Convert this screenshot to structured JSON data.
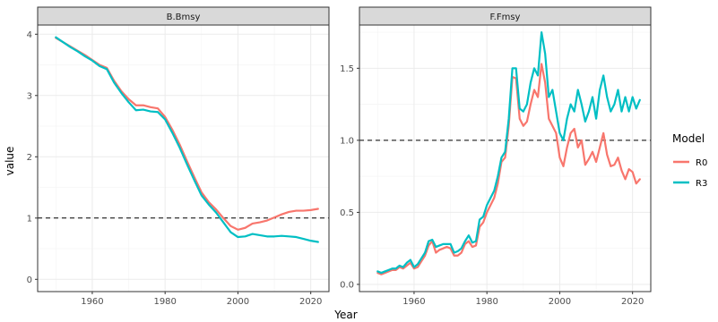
{
  "chart_data": {
    "type": "line",
    "xlabel": "Year",
    "ylabel": "value",
    "legend": {
      "title": "Model",
      "position": "right",
      "entries": [
        {
          "name": "R0",
          "color": "#F8766D"
        },
        {
          "name": "R3",
          "color": "#00BFC4"
        }
      ]
    },
    "grid": true,
    "facets": [
      {
        "title": "B.Bmsy",
        "xlim": [
          1945,
          2025
        ],
        "ylim": [
          -0.2,
          4.15
        ],
        "xticks": [
          1960,
          1980,
          2000,
          2020
        ],
        "yticks": [
          0,
          1,
          2,
          3,
          4
        ],
        "reference_line": 1.0,
        "series": [
          {
            "name": "R0",
            "x": [
              1950,
              1952,
              1954,
              1956,
              1958,
              1960,
              1962,
              1964,
              1966,
              1968,
              1970,
              1972,
              1974,
              1976,
              1978,
              1980,
              1982,
              1984,
              1986,
              1988,
              1990,
              1992,
              1994,
              1996,
              1998,
              2000,
              2002,
              2004,
              2006,
              2008,
              2010,
              2012,
              2014,
              2016,
              2018,
              2020,
              2022
            ],
            "y": [
              3.94,
              3.87,
              3.8,
              3.73,
              3.66,
              3.58,
              3.5,
              3.45,
              3.24,
              3.07,
              2.94,
              2.84,
              2.84,
              2.81,
              2.79,
              2.65,
              2.44,
              2.2,
              1.93,
              1.67,
              1.42,
              1.26,
              1.14,
              1.0,
              0.87,
              0.81,
              0.84,
              0.91,
              0.93,
              0.96,
              1.01,
              1.06,
              1.1,
              1.12,
              1.12,
              1.13,
              1.15
            ]
          },
          {
            "name": "R3",
            "x": [
              1950,
              1952,
              1954,
              1956,
              1958,
              1960,
              1962,
              1964,
              1966,
              1968,
              1970,
              1972,
              1974,
              1976,
              1978,
              1980,
              1982,
              1984,
              1986,
              1988,
              1990,
              1992,
              1994,
              1996,
              1998,
              2000,
              2002,
              2004,
              2006,
              2008,
              2010,
              2012,
              2014,
              2016,
              2018,
              2020,
              2022
            ],
            "y": [
              3.95,
              3.87,
              3.79,
              3.72,
              3.64,
              3.57,
              3.48,
              3.43,
              3.21,
              3.04,
              2.89,
              2.76,
              2.77,
              2.74,
              2.73,
              2.61,
              2.39,
              2.15,
              1.88,
              1.62,
              1.37,
              1.22,
              1.09,
              0.93,
              0.77,
              0.69,
              0.7,
              0.74,
              0.72,
              0.7,
              0.7,
              0.71,
              0.7,
              0.69,
              0.66,
              0.63,
              0.61
            ]
          }
        ]
      },
      {
        "title": "F.Fmsy",
        "xlim": [
          1945,
          2025
        ],
        "ylim": [
          -0.05,
          1.8
        ],
        "xticks": [
          1960,
          1980,
          2000,
          2020
        ],
        "yticks": [
          0.0,
          0.5,
          1.0,
          1.5
        ],
        "reference_line": 1.0,
        "series": [
          {
            "name": "R0",
            "x": [
              1950,
              1951,
              1952,
              1953,
              1954,
              1955,
              1956,
              1957,
              1958,
              1959,
              1960,
              1961,
              1962,
              1963,
              1964,
              1965,
              1966,
              1967,
              1968,
              1969,
              1970,
              1971,
              1972,
              1973,
              1974,
              1975,
              1976,
              1977,
              1978,
              1979,
              1980,
              1981,
              1982,
              1983,
              1984,
              1985,
              1986,
              1987,
              1988,
              1989,
              1990,
              1991,
              1992,
              1993,
              1994,
              1995,
              1996,
              1997,
              1998,
              1999,
              2000,
              2001,
              2002,
              2003,
              2004,
              2005,
              2006,
              2007,
              2008,
              2009,
              2010,
              2011,
              2012,
              2013,
              2014,
              2015,
              2016,
              2017,
              2018,
              2019,
              2020,
              2021,
              2022
            ],
            "y": [
              0.08,
              0.07,
              0.08,
              0.09,
              0.1,
              0.1,
              0.12,
              0.11,
              0.13,
              0.15,
              0.11,
              0.12,
              0.16,
              0.2,
              0.27,
              0.3,
              0.22,
              0.24,
              0.25,
              0.26,
              0.25,
              0.2,
              0.2,
              0.22,
              0.28,
              0.3,
              0.26,
              0.27,
              0.4,
              0.43,
              0.5,
              0.55,
              0.6,
              0.7,
              0.85,
              0.88,
              1.1,
              1.44,
              1.43,
              1.15,
              1.1,
              1.13,
              1.25,
              1.35,
              1.3,
              1.53,
              1.4,
              1.15,
              1.1,
              1.05,
              0.88,
              0.82,
              0.95,
              1.05,
              1.08,
              0.95,
              1.0,
              0.83,
              0.87,
              0.92,
              0.85,
              0.95,
              1.05,
              0.9,
              0.82,
              0.83,
              0.88,
              0.79,
              0.73,
              0.8,
              0.78,
              0.7,
              0.73
            ]
          },
          {
            "name": "R3",
            "x": [
              1950,
              1951,
              1952,
              1953,
              1954,
              1955,
              1956,
              1957,
              1958,
              1959,
              1960,
              1961,
              1962,
              1963,
              1964,
              1965,
              1966,
              1967,
              1968,
              1969,
              1970,
              1971,
              1972,
              1973,
              1974,
              1975,
              1976,
              1977,
              1978,
              1979,
              1980,
              1981,
              1982,
              1983,
              1984,
              1985,
              1986,
              1987,
              1988,
              1989,
              1990,
              1991,
              1992,
              1993,
              1994,
              1995,
              1996,
              1997,
              1998,
              1999,
              2000,
              2001,
              2002,
              2003,
              2004,
              2005,
              2006,
              2007,
              2008,
              2009,
              2010,
              2011,
              2012,
              2013,
              2014,
              2015,
              2016,
              2017,
              2018,
              2019,
              2020,
              2021,
              2022
            ],
            "y": [
              0.09,
              0.08,
              0.09,
              0.1,
              0.11,
              0.11,
              0.13,
              0.12,
              0.15,
              0.17,
              0.12,
              0.14,
              0.18,
              0.22,
              0.3,
              0.31,
              0.26,
              0.27,
              0.28,
              0.28,
              0.28,
              0.22,
              0.23,
              0.25,
              0.3,
              0.34,
              0.29,
              0.3,
              0.45,
              0.47,
              0.55,
              0.6,
              0.65,
              0.75,
              0.88,
              0.92,
              1.15,
              1.5,
              1.5,
              1.22,
              1.2,
              1.25,
              1.4,
              1.5,
              1.45,
              1.75,
              1.6,
              1.3,
              1.35,
              1.2,
              1.05,
              1.0,
              1.15,
              1.25,
              1.2,
              1.35,
              1.25,
              1.13,
              1.2,
              1.3,
              1.15,
              1.35,
              1.45,
              1.3,
              1.2,
              1.25,
              1.35,
              1.2,
              1.3,
              1.2,
              1.3,
              1.22,
              1.28
            ]
          }
        ]
      }
    ]
  }
}
